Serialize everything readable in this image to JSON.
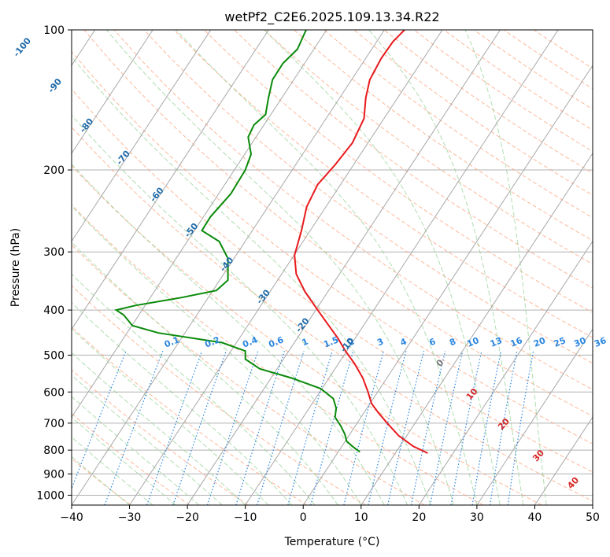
{
  "chart_data": {
    "type": "line",
    "subtype": "skew-T log-P diagram",
    "title": "wetPf2_C2E6.2025.109.13.34.R22",
    "xlabel": "Temperature (°C)",
    "ylabel": "Pressure (hPa)",
    "xlim": [
      -40,
      50
    ],
    "ylim": [
      1050,
      100
    ],
    "x_ticks": [
      "−40",
      "−30",
      "−20",
      "−10",
      "0",
      "10",
      "20",
      "30",
      "40",
      "50"
    ],
    "x_tick_values": [
      -40,
      -30,
      -20,
      -10,
      0,
      10,
      20,
      30,
      40,
      50
    ],
    "y_ticks": [
      "100",
      "200",
      "300",
      "400",
      "500",
      "600",
      "700",
      "800",
      "900",
      "1000"
    ],
    "y_tick_values": [
      100,
      200,
      300,
      400,
      500,
      600,
      700,
      800,
      900,
      1000
    ],
    "colors": {
      "temperature": "#e8191c",
      "dewpoint": "#0a8a0a",
      "isotherm": "#a8a8a8",
      "dry_adiabat": "#fca07a",
      "moist_adiabat": "#8fcf8f",
      "mixing_ratio": "#2a86e0",
      "isotherm_label": "#1f6aa8",
      "mixing_label": "#2a86e0",
      "moist_label_gray": "#777777",
      "moist_label_red": "#d62728"
    },
    "isotherm_labels": [
      {
        "text": "-100",
        "value": -100,
        "p": 110
      },
      {
        "text": "-90",
        "value": -90,
        "p": 133
      },
      {
        "text": "-80",
        "value": -80,
        "p": 162
      },
      {
        "text": "-70",
        "value": -70,
        "p": 190
      },
      {
        "text": "-60",
        "value": -60,
        "p": 228
      },
      {
        "text": "-50",
        "value": -50,
        "p": 272
      },
      {
        "text": "-40",
        "value": -40,
        "p": 322
      },
      {
        "text": "-30",
        "value": -30,
        "p": 378
      },
      {
        "text": "-20",
        "value": -20,
        "p": 435
      },
      {
        "text": "-10",
        "value": -10,
        "p": 480
      }
    ],
    "mixing_ratio_labels": [
      "0.1",
      "0.2",
      "0.4",
      "0.6",
      "1",
      "1.5",
      "2",
      "3",
      "4",
      "6",
      "8",
      "10",
      "13",
      "16",
      "20",
      "25",
      "30",
      "36"
    ],
    "mixing_ratio_x": [
      -22.5,
      -15.5,
      -9,
      -4.5,
      0.5,
      5,
      8.5,
      13.5,
      17.5,
      22.5,
      26,
      29.5,
      33.5,
      37,
      41,
      44.5,
      48,
      51.5
    ],
    "moist_adiabat_labels": [
      {
        "text": "0",
        "x": 24,
        "p": 525,
        "color": "moist_label_gray"
      },
      {
        "text": "10",
        "x": 29.5,
        "p": 612,
        "color": "moist_label_red"
      },
      {
        "text": "20",
        "x": 35,
        "p": 710,
        "color": "moist_label_red"
      },
      {
        "text": "30",
        "x": 41,
        "p": 830,
        "color": "moist_label_red"
      },
      {
        "text": "40",
        "x": 47,
        "p": 950,
        "color": "moist_label_red"
      }
    ],
    "series": [
      {
        "name": "Temperature",
        "color_key": "temperature",
        "points": [
          [
            21.5,
            812
          ],
          [
            19,
            785
          ],
          [
            16.5,
            745
          ],
          [
            14.5,
            700
          ],
          [
            13,
            665
          ],
          [
            11.8,
            635
          ],
          [
            11.2,
            600
          ],
          [
            10.3,
            560
          ],
          [
            8.8,
            520
          ],
          [
            7.3,
            490
          ],
          [
            6,
            460
          ],
          [
            4.3,
            430
          ],
          [
            2.5,
            400
          ],
          [
            0.3,
            365
          ],
          [
            -1.2,
            335
          ],
          [
            -1.5,
            305
          ],
          [
            -0.3,
            270
          ],
          [
            0.6,
            240
          ],
          [
            2.5,
            215
          ],
          [
            5.5,
            195
          ],
          [
            8.5,
            175
          ],
          [
            10.5,
            155
          ],
          [
            10.8,
            140
          ],
          [
            11.5,
            128
          ],
          [
            13.5,
            115
          ],
          [
            15.5,
            106
          ],
          [
            17.5,
            100
          ]
        ]
      },
      {
        "name": "Dewpoint",
        "color_key": "dewpoint",
        "points": [
          [
            9.8,
            807
          ],
          [
            8.5,
            785
          ],
          [
            7.5,
            765
          ],
          [
            7.2,
            740
          ],
          [
            6.5,
            710
          ],
          [
            5.5,
            680
          ],
          [
            5.7,
            650
          ],
          [
            5.2,
            620
          ],
          [
            3,
            590
          ],
          [
            -2,
            560
          ],
          [
            -7.5,
            535
          ],
          [
            -10,
            510
          ],
          [
            -10,
            490
          ],
          [
            -14,
            470
          ],
          [
            -25,
            448
          ],
          [
            -29.5,
            432
          ],
          [
            -31,
            410
          ],
          [
            -32.3,
            400
          ],
          [
            -29,
            391
          ],
          [
            -21,
            376
          ],
          [
            -15,
            363
          ],
          [
            -13,
            345
          ],
          [
            -13,
            310
          ],
          [
            -14.5,
            285
          ],
          [
            -17.5,
            270
          ],
          [
            -16,
            252
          ],
          [
            -12.5,
            225
          ],
          [
            -10,
            200
          ],
          [
            -9,
            185
          ],
          [
            -9.5,
            170
          ],
          [
            -8.5,
            160
          ],
          [
            -6.5,
            152
          ],
          [
            -6,
            140
          ],
          [
            -5.3,
            128
          ],
          [
            -3.5,
            118
          ],
          [
            -1,
            110
          ],
          [
            0.5,
            100
          ]
        ]
      }
    ]
  }
}
